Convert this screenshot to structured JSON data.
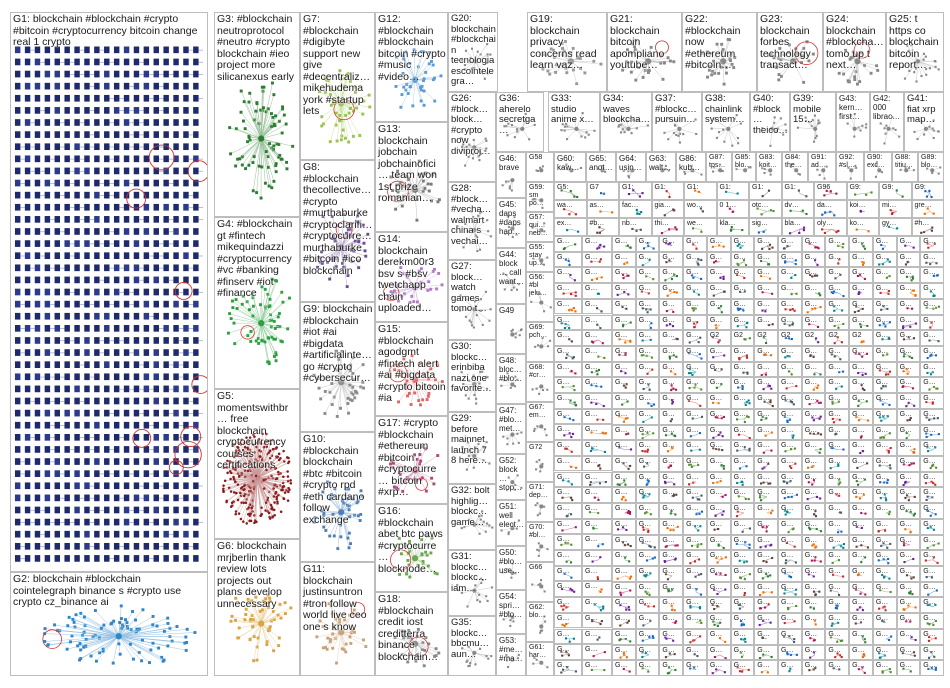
{
  "title": "",
  "groups": [
    {
      "id": "G1",
      "label": "G1: blockchain #blockchain #crypto #bitcoin #cryptocurrency bitcoin change real 1 crypto",
      "color": "#1f2a6b",
      "style": "grid"
    },
    {
      "id": "G2",
      "label": "G2: blockchain #blockchain cointelegraph binance s #crypto use crypto cz_binance ai",
      "color": "#2f86c8",
      "style": "cluster"
    },
    {
      "id": "G3",
      "label": "G3: #blockchain neutroprotocol #neutro #crypto blockchain #ieo project more silicanexus early",
      "color": "#2e7d32",
      "style": "cluster"
    },
    {
      "id": "G4",
      "label": "G4: #blockchain gt #fintech mikequindazzi #cryptocurrency #vc #banking #finserv #iot #finance",
      "color": "#2ea043",
      "style": "cluster"
    },
    {
      "id": "G5",
      "label": "G5: momentswithbr… free blockchain cryptocurrency courses certifications",
      "color": "#8b1a1a",
      "style": "dense"
    },
    {
      "id": "G6",
      "label": "G6: blockchain mrjberlin thank review lots projects out plans develop unnecessary",
      "color": "#d9a441",
      "style": "cluster"
    },
    {
      "id": "G7",
      "label": "G7: #blockchain #digibyte support new give #decentraliz… mikehudema york #startup lets",
      "color": "#9bc24a",
      "style": "cluster"
    },
    {
      "id": "G8",
      "label": "G8: #blockchain thecollective… #crypto #murthaburke #cryptoclarifi… #cryptocurre… murthaburke #bitcoin #ico blockchain",
      "color": "#6a4c93",
      "style": "cluster"
    },
    {
      "id": "G9",
      "label": "G9: blockchain #blockchain #iot #ai #bigdata #artificialinte… go #crypto #cybersecur…",
      "color": "#8c8c8c",
      "style": "cluster"
    },
    {
      "id": "G10",
      "label": "G10: #blockchain blockchain #btc #bitcoin #crypto rpd #eth cardano follow exchange",
      "color": "#4d7fb8",
      "style": "cluster"
    },
    {
      "id": "G11",
      "label": "G11: blockchain justinsuntron #tron follow world live ceo one s know",
      "color": "#c7a27a",
      "style": "cluster"
    },
    {
      "id": "G12",
      "label": "G12: #blockchain #blockchain bitcoin #crypto #music #video…",
      "color": "#5c9bd1",
      "style": "cluster"
    },
    {
      "id": "G13",
      "label": "G13: blockchain jobchain jobchainofici… team won 1st prize romanian…",
      "color": "#7a7a7a",
      "style": "cluster"
    },
    {
      "id": "G14",
      "label": "G14: blockchain derekm00r3 bsv s #bsv twetchapp chain uploaded…",
      "color": "#b07cc6",
      "style": "cluster"
    },
    {
      "id": "G15",
      "label": "G15: #blockchain agodgmt #fintech alert #ai #bigdata #crypto bitcoin #ia",
      "color": "#e06666",
      "style": "cluster"
    },
    {
      "id": "G16",
      "label": "G16: #blockchain abet btc paws #cryptocurre… blocknode…",
      "color": "#6aa84f",
      "style": "cluster"
    },
    {
      "id": "G17",
      "label": "G17: #crypto #blockchain #ethereum #bitcoin #cryptocurre… bitcoin #xrp…",
      "color": "#a64d79",
      "style": "cluster"
    },
    {
      "id": "G18",
      "label": "G18: #blockchain credit iost creditterra binance blockchain…",
      "color": "#888888",
      "style": "cluster"
    },
    {
      "id": "G19",
      "label": "G19: blockchain privacy concerns read learn vaz…",
      "color": "#999999",
      "style": "cluster"
    },
    {
      "id": "G20",
      "label": "G20: blockchain #blockchain tecnologia escointelegra…",
      "color": "#888888",
      "style": "cluster"
    },
    {
      "id": "G21",
      "label": "G21: blockchain bitcoin apompliano youtube…",
      "color": "#888888",
      "style": "cluster"
    },
    {
      "id": "G22",
      "label": "G22: #blockchain now #ethereum #bitcoin…",
      "color": "#888888",
      "style": "cluster"
    },
    {
      "id": "G23",
      "label": "G23: blockchain forbes technology transact…",
      "color": "#888888",
      "style": "cluster"
    },
    {
      "id": "G24",
      "label": "G24: blockchain #blockcha… tomo up t next…",
      "color": "#888888",
      "style": "cluster"
    },
    {
      "id": "G25",
      "label": "G25: t https co blockchain bitcoin report…",
      "color": "#888888",
      "style": "cluster"
    },
    {
      "id": "G26",
      "label": "G26: #block… block… #crypto now diviproj…",
      "color": "#888888",
      "style": "cluster"
    },
    {
      "id": "G27",
      "label": "G27: block… watch games tomo t…",
      "color": "#888888",
      "style": "cluster"
    },
    {
      "id": "G28",
      "label": "G28: #block… #vecha… walmart china s vechai…",
      "color": "#888888",
      "style": "cluster"
    },
    {
      "id": "G29",
      "label": "G29: before mainnet launch 7 8 here…",
      "color": "#888888",
      "style": "cluster"
    },
    {
      "id": "G30",
      "label": "G30: blockc… erinbiba nazi one favorite…",
      "color": "#888888",
      "style": "cluster"
    },
    {
      "id": "G31",
      "label": "G31: blockc… blockc… iam…",
      "color": "#888888",
      "style": "cluster"
    },
    {
      "id": "G32",
      "label": "G32: bolt highlig… blockc… game…",
      "color": "#888888",
      "style": "cluster"
    },
    {
      "id": "G33",
      "label": "G33: studio anime x…",
      "color": "#888888",
      "style": "cluster"
    },
    {
      "id": "G34",
      "label": "G34: waves blockcha…",
      "color": "#888888",
      "style": "cluster"
    },
    {
      "id": "G35",
      "label": "G35: blockc… bbcmu… aun…",
      "color": "#888888",
      "style": "cluster"
    },
    {
      "id": "G36",
      "label": "G36: aherelo secretga…",
      "color": "#888888",
      "style": "cluster"
    },
    {
      "id": "G37",
      "label": "G37: #blockc… pursuin…",
      "color": "#888888",
      "style": "cluster"
    },
    {
      "id": "G38",
      "label": "G38: chainlink system…",
      "color": "#888888",
      "style": "cluster"
    },
    {
      "id": "G39",
      "label": "G39: mobile 15…",
      "color": "#888888",
      "style": "cluster"
    },
    {
      "id": "G40",
      "label": "G40: #block… theico…",
      "color": "#888888",
      "style": "cluster"
    },
    {
      "id": "G41",
      "label": "G41: fiat xrp map…",
      "color": "#888888",
      "style": "cluster"
    },
    {
      "id": "G42",
      "label": "G42: 000 librac…",
      "color": "#888888",
      "style": "cluster"
    },
    {
      "id": "G43",
      "label": "G43: kern… first…",
      "color": "#888888",
      "style": "cluster"
    },
    {
      "id": "G44",
      "label": "G44: block… call want…",
      "color": "#888888",
      "style": "cluster"
    },
    {
      "id": "G45",
      "label": "G45: daps #daps hap…",
      "color": "#888888",
      "style": "cluster"
    },
    {
      "id": "G46",
      "label": "G46: brave",
      "color": "#888888",
      "style": "cluster"
    },
    {
      "id": "G47",
      "label": "G47: #blo… met…",
      "color": "#888888",
      "style": "cluster"
    },
    {
      "id": "G48",
      "label": "G48: bloc… #blo…",
      "color": "#888888",
      "style": "cluster"
    },
    {
      "id": "G49",
      "label": "G49",
      "color": "#888888",
      "style": "cluster"
    },
    {
      "id": "G50",
      "label": "G50: #blo… use…",
      "color": "#888888",
      "style": "cluster"
    },
    {
      "id": "G51",
      "label": "G51: well elect…",
      "color": "#888888",
      "style": "cluster"
    },
    {
      "id": "G52",
      "label": "G52: block… stop…",
      "color": "#888888",
      "style": "cluster"
    },
    {
      "id": "G53",
      "label": "G53: #me… #ma…",
      "color": "#888888",
      "style": "cluster"
    },
    {
      "id": "G54",
      "label": "G54: spri… #blo…",
      "color": "#888888",
      "style": "cluster"
    },
    {
      "id": "G55",
      "label": "G55: stay up…",
      "color": "#888888",
      "style": "cluster"
    },
    {
      "id": "G56",
      "label": "G56: #bl jelu…",
      "color": "#888888",
      "style": "cluster"
    },
    {
      "id": "G57",
      "label": "G57: qui… neb…",
      "color": "#888888",
      "style": "cluster"
    },
    {
      "id": "G58",
      "label": "G58",
      "color": "#888888",
      "style": "cluster"
    },
    {
      "id": "G59",
      "label": "G59: sm po…",
      "color": "#888888",
      "style": "cluster"
    },
    {
      "id": "G60",
      "label": "G60: kaw…",
      "color": "#888888",
      "style": "cluster"
    },
    {
      "id": "G61",
      "label": "G61: har…",
      "color": "#888888",
      "style": "cluster"
    },
    {
      "id": "G62",
      "label": "G62: blo…",
      "color": "#888888",
      "style": "cluster"
    },
    {
      "id": "G63",
      "label": "G63: walt…",
      "color": "#888888",
      "style": "cluster"
    },
    {
      "id": "G64",
      "label": "G64: usin…",
      "color": "#888888",
      "style": "cluster"
    },
    {
      "id": "G65",
      "label": "G65: anot…",
      "color": "#888888",
      "style": "cluster"
    },
    {
      "id": "G66",
      "label": "G66",
      "color": "#888888",
      "style": "cluster"
    },
    {
      "id": "G67",
      "label": "G67: em…",
      "color": "#888888",
      "style": "cluster"
    },
    {
      "id": "G68",
      "label": "G68: #cr…",
      "color": "#888888",
      "style": "cluster"
    },
    {
      "id": "G69",
      "label": "G69: pch…",
      "color": "#888888",
      "style": "cluster"
    },
    {
      "id": "G70",
      "label": "G70: #bl…",
      "color": "#888888",
      "style": "cluster"
    },
    {
      "id": "G71",
      "label": "G71: dep…",
      "color": "#888888",
      "style": "cluster"
    },
    {
      "id": "G72",
      "label": "G72",
      "color": "#888888",
      "style": "cluster"
    },
    {
      "id": "G83",
      "label": "G83: koit…",
      "color": "#888888",
      "style": "cluster"
    },
    {
      "id": "G84",
      "label": "G84: the…",
      "color": "#888888",
      "style": "cluster"
    },
    {
      "id": "G85",
      "label": "G85: blo…",
      "color": "#888888",
      "style": "cluster"
    },
    {
      "id": "G86",
      "label": "G86: kub…",
      "color": "#888888",
      "style": "cluster"
    },
    {
      "id": "G87",
      "label": "G87: tps…",
      "color": "#888888",
      "style": "cluster"
    },
    {
      "id": "G88",
      "label": "G88: titiu…",
      "color": "#888888",
      "style": "cluster"
    },
    {
      "id": "G89",
      "label": "G89: blo…",
      "color": "#888888",
      "style": "cluster"
    },
    {
      "id": "G90",
      "label": "G90: exc…",
      "color": "#888888",
      "style": "cluster"
    },
    {
      "id": "G91",
      "label": "G91: ad…",
      "color": "#888888",
      "style": "cluster"
    },
    {
      "id": "G92",
      "label": "G92: #sl…",
      "color": "#888888",
      "style": "cluster"
    }
  ],
  "tiles_right": {
    "row_a": [
      "G5:",
      "G7",
      "G1:",
      "G1:",
      "G1:",
      "G1:",
      "G1:",
      "G1:",
      "G96",
      "G9:",
      "G9:",
      "G9:"
    ],
    "row_a_sub": [
      "wa…",
      "as…",
      "fac…",
      "gia…",
      "wo…",
      "0 1…",
      "otc…",
      "dv…",
      "da…",
      "koi…",
      "mi…",
      "gre…"
    ],
    "row_b_sub": [
      "ex…",
      "#b…",
      "nb…",
      "thi…",
      "we…",
      "kla…",
      "sig…",
      "bla…",
      "oly…",
      "ko…",
      "gy…",
      "#h…"
    ],
    "row_mid_labels": [
      "G2",
      "G2",
      "G2",
      "G2",
      "G2",
      "G2",
      "G2"
    ],
    "cell_text": "G…"
  }
}
